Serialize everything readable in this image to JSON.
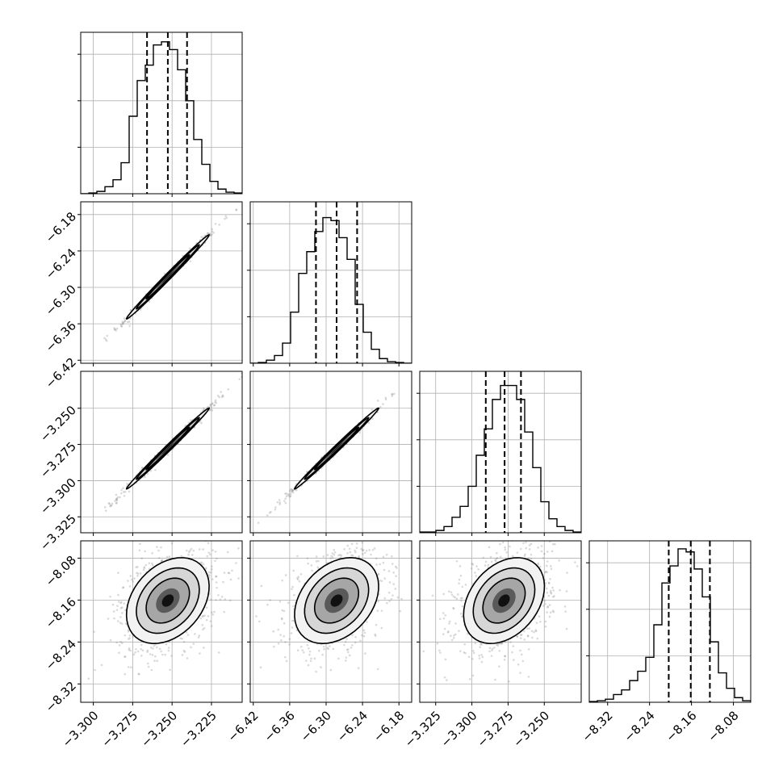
{
  "chart_data": {
    "type": "corner",
    "n_params": 4,
    "grid": true,
    "params": [
      {
        "range": [
          -3.308,
          -3.2055
        ],
        "ticks": [
          -3.3,
          -3.275,
          -3.25,
          -3.225
        ],
        "tick_labels": [
          "−3.300",
          "−3.275",
          "−3.250",
          "−3.225"
        ]
      },
      {
        "range": [
          -6.425,
          -6.159
        ],
        "ticks": [
          -6.42,
          -6.36,
          -6.3,
          -6.24,
          -6.18
        ],
        "tick_labels": [
          "−6.42",
          "−6.36",
          "−6.30",
          "−6.24",
          "−6.18"
        ]
      },
      {
        "range": [
          -3.336,
          -3.2245
        ],
        "ticks": [
          -3.325,
          -3.3,
          -3.275,
          -3.25
        ],
        "tick_labels": [
          "−3.325",
          "−3.300",
          "−3.275",
          "−3.250"
        ]
      },
      {
        "range": [
          -8.355,
          -8.047
        ],
        "ticks": [
          -8.32,
          -8.24,
          -8.16,
          -8.08
        ],
        "tick_labels": [
          "−8.32",
          "−8.24",
          "−8.16",
          "−8.08"
        ]
      }
    ],
    "quantiles": [
      [
        -3.2659,
        -3.2527,
        -3.2405
      ],
      [
        -6.3167,
        -6.2827,
        -6.2489
      ],
      [
        -3.2904,
        -3.2774,
        -3.2661
      ],
      [
        -8.2034,
        -8.1614,
        -8.1249
      ]
    ],
    "histograms": [
      [
        0,
        0.005,
        0.015,
        0.045,
        0.09,
        0.2,
        0.5,
        0.73,
        0.83,
        0.96,
        0.98,
        0.93,
        0.8,
        0.6,
        0.35,
        0.19,
        0.08,
        0.03,
        0.01,
        0.005
      ],
      [
        0,
        0.005,
        0.02,
        0.05,
        0.13,
        0.33,
        0.58,
        0.72,
        0.85,
        0.94,
        0.92,
        0.81,
        0.67,
        0.38,
        0.2,
        0.09,
        0.03,
        0.01,
        0.005,
        0
      ],
      [
        0.005,
        0.005,
        0.015,
        0.04,
        0.1,
        0.17,
        0.3,
        0.5,
        0.67,
        0.86,
        0.95,
        0.95,
        0.86,
        0.65,
        0.42,
        0.2,
        0.09,
        0.04,
        0.015,
        0.005
      ],
      [
        0.005,
        0.01,
        0.02,
        0.05,
        0.08,
        0.14,
        0.2,
        0.29,
        0.5,
        0.77,
        0.88,
        0.99,
        0.97,
        0.86,
        0.68,
        0.39,
        0.19,
        0.09,
        0.03,
        0.01
      ]
    ],
    "means": [
      -3.2527,
      -6.2827,
      -3.2778,
      -8.161
    ],
    "sds": [
      0.0125,
      0.033,
      0.0133,
      0.039
    ],
    "correlations": [
      [
        1,
        0.995,
        0.995,
        0.33
      ],
      [
        0.995,
        1,
        0.995,
        0.33
      ],
      [
        0.995,
        0.995,
        1,
        0.33
      ],
      [
        0.33,
        0.33,
        0.33,
        1
      ]
    ]
  }
}
